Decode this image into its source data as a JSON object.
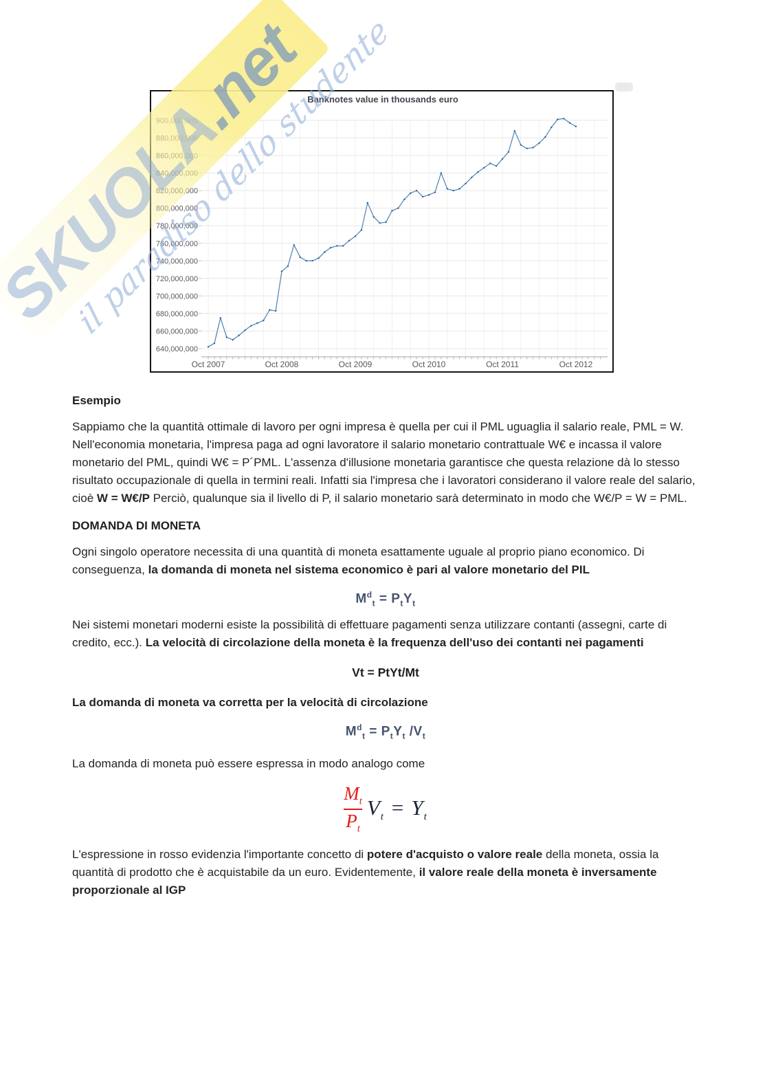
{
  "watermark": {
    "brand": "SKUOLA",
    "brand_suffix": ".net",
    "slogan": "il paradiso dello studente",
    "band_color": "#fbefa0",
    "brand_color": "#8daad4"
  },
  "chart_data": {
    "type": "line",
    "title": "Banknotes value in thousands euro",
    "x_unit": "month",
    "x_range": [
      "Oct 2007",
      "Oct 2012"
    ],
    "x_tick_labels": [
      "Oct 2007",
      "Oct 2008",
      "Oct 2009",
      "Oct 2010",
      "Oct 2011",
      "Oct 2012"
    ],
    "x_tick_month_index": [
      0,
      12,
      24,
      36,
      48,
      60
    ],
    "y_ticks": [
      640000000,
      660000000,
      680000000,
      700000000,
      720000000,
      740000000,
      760000000,
      780000000,
      800000000,
      820000000,
      840000000,
      860000000,
      880000000,
      900000000
    ],
    "y_tick_labels": [
      "640,000,000",
      "660,000,000",
      "680,000,000",
      "700,000,000",
      "720,000,000",
      "740,000,000",
      "760,000,000",
      "780,000,000",
      "800,000,000",
      "820,000,000",
      "840,000,000",
      "860,000,000",
      "880,000,000",
      "900,000,000"
    ],
    "grid": true,
    "legend": false,
    "line_color": "#5b89b8",
    "marker_color": "#2e6194",
    "series": [
      {
        "name": "Banknotes value",
        "values": [
          642000000,
          646000000,
          675000000,
          653000000,
          650000000,
          655000000,
          661000000,
          666000000,
          669000000,
          672000000,
          684000000,
          683000000,
          728000000,
          734000000,
          758000000,
          744000000,
          740000000,
          740000000,
          743000000,
          750000000,
          755000000,
          757000000,
          757000000,
          763000000,
          768000000,
          775000000,
          806000000,
          790000000,
          783000000,
          784000000,
          797000000,
          800000000,
          810000000,
          817000000,
          820000000,
          813000000,
          815000000,
          818000000,
          840000000,
          822000000,
          820000000,
          822000000,
          828000000,
          835000000,
          841000000,
          846000000,
          851000000,
          848000000,
          856000000,
          864000000,
          888000000,
          872000000,
          868000000,
          869000000,
          874000000,
          881000000,
          892000000,
          901000000,
          902000000,
          897000000,
          893000000
        ]
      }
    ]
  },
  "headings": {
    "esempio": "Esempio",
    "domanda": "DOMANDA DI MONETA"
  },
  "paragraphs": {
    "p1": [
      {
        "t": "Sappiamo che la quantità ottimale di lavoro per ogni impresa è quella per cui il PML uguaglia il salario reale, PML = W. Nell'economia monetaria, l'impresa paga ad ogni lavoratore il salario monetario contrattuale W€ e incassa il valore monetario del PML, quindi W€ = P´PML. L'assenza d'illusione monetaria garantisce che questa relazione dà lo stesso risultato occupazionale di quella in termini reali. Infatti sia l'impresa che i lavoratori considerano il valore reale del salario, cioè ",
        "b": false
      },
      {
        "t": "W = W€/P",
        "b": true
      },
      {
        "t": " Perciò, qualunque sia il livello di P, il salario monetario sarà determinato in modo che W€/P = W = PML.",
        "b": false
      }
    ],
    "p2": [
      {
        "t": "Ogni singolo operatore necessita di una quantità di moneta esattamente uguale al proprio piano economico. Di conseguenza, ",
        "b": false
      },
      {
        "t": "la domanda di moneta nel sistema economico è pari al valore monetario del PIL",
        "b": true
      }
    ],
    "p3": [
      {
        "t": "Nei sistemi monetari moderni esiste la possibilità di effettuare pagamenti senza utilizzare contanti (assegni, carte di credito, ecc.). ",
        "b": false
      },
      {
        "t": "La velocità di circolazione della moneta è la frequenza dell'uso dei contanti nei pagamenti",
        "b": true
      }
    ],
    "p4": [
      {
        "t": "La domanda di moneta va corretta per la velocità di circolazione",
        "b": true
      }
    ],
    "p5": [
      {
        "t": "La domanda di moneta può essere espressa in modo analogo come",
        "b": false
      }
    ],
    "p6": [
      {
        "t": "L'espressione in rosso evidenzia l'importante concetto di ",
        "b": false
      },
      {
        "t": "potere d'acquisto o valore reale",
        "b": true
      },
      {
        "t": " della moneta, ossia la quantità di prodotto che è acquistabile da un euro. Evidentemente, ",
        "b": false
      },
      {
        "t": "il valore reale della moneta è inversamente proporzionale al IGP",
        "b": true
      }
    ]
  },
  "formulas": {
    "money_demand": {
      "color": "#46536f",
      "tokens": [
        {
          "t": "M"
        },
        {
          "t": "d",
          "pos": "sup"
        },
        {
          "t": "t",
          "pos": "sub"
        },
        {
          "t": " = "
        },
        {
          "t": "P"
        },
        {
          "t": "t",
          "pos": "sub"
        },
        {
          "t": "Y"
        },
        {
          "t": "t",
          "pos": "sub"
        }
      ]
    },
    "velocity_text": "Vt = PtYt/Mt",
    "money_demand_velocity": {
      "color": "#46536f",
      "tokens": [
        {
          "t": "M"
        },
        {
          "t": "d",
          "pos": "sup"
        },
        {
          "t": "t",
          "pos": "sub"
        },
        {
          "t": " = "
        },
        {
          "t": "P"
        },
        {
          "t": "t",
          "pos": "sub"
        },
        {
          "t": "Y"
        },
        {
          "t": "t",
          "pos": "sub"
        },
        {
          "t": " /V"
        },
        {
          "t": "t",
          "pos": "sub"
        }
      ]
    },
    "real_balance": {
      "numerator": "M",
      "numerator_sub": "t",
      "denominator": "P",
      "denominator_sub": "t",
      "mid": "V",
      "mid_sub": "t",
      "equals": "=",
      "rhs": "Y",
      "rhs_sub": "t",
      "fraction_color": "#e01b1b",
      "rest_color": "#1d2438"
    }
  }
}
